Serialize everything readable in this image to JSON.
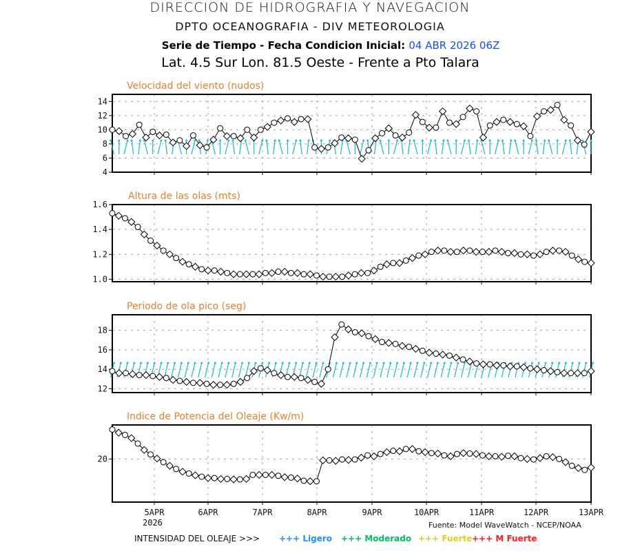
{
  "header": {
    "line1": "DIRECCION DE HIDROGRAFIA Y NAVEGACION",
    "line2": "DPTO OCEANOGRAFIA - DIV METEOROLOGIA",
    "line3_prefix": "Serie de Tiempo - Fecha Condicion Inicial:",
    "line3_date": "04 ABR 2026 06Z",
    "line4": "Lat. 4.5 Sur  Lon. 81.5 Oeste - Frente a Pto Talara"
  },
  "footer": {
    "year": "2026",
    "source": "Fuente: Model WaveWatch - NCEP/NOAA",
    "intensity_label": "INTENSIDAD DEL OLEAJE >>>",
    "legend": [
      {
        "label": "+++ Ligero",
        "color": "#1e90ff"
      },
      {
        "label": "+++ Moderado",
        "color": "#00c060"
      },
      {
        "label": "+++ Fuerte",
        "color": "#e0d020"
      },
      {
        "label": "+++ M Fuerte",
        "color": "#ff2020"
      }
    ]
  },
  "colors": {
    "title": "#e8822a",
    "arrows": "#20c0c8",
    "line": "#000000",
    "grid": "#a0a0a0"
  },
  "chart_data": [
    {
      "type": "line",
      "title": "Velocidad del viento (nudos)",
      "x_start": "04APR 06Z",
      "x_step_hours": 3,
      "xtick_labels": [
        "5APR",
        "6APR",
        "7APR",
        "8APR",
        "9APR",
        "10APR",
        "11APR",
        "12APR",
        "13APR"
      ],
      "ylim": [
        4,
        15
      ],
      "yticks": [
        4,
        6,
        8,
        10,
        12,
        14
      ],
      "grid": true,
      "values": [
        10.0,
        9.8,
        9.1,
        9.4,
        10.7,
        8.9,
        9.7,
        9.2,
        9.3,
        8.2,
        8.5,
        7.7,
        9.2,
        7.8,
        7.5,
        8.6,
        10.2,
        9.1,
        9.1,
        8.8,
        10.0,
        8.9,
        10.0,
        10.4,
        11.0,
        11.3,
        11.6,
        11.1,
        11.5,
        11.5,
        7.5,
        7.3,
        7.5,
        8.1,
        8.9,
        8.8,
        8.6,
        5.9,
        7.1,
        8.8,
        9.5,
        10.2,
        9.2,
        8.9,
        9.6,
        12.1,
        11.1,
        10.3,
        10.3,
        12.6,
        11.0,
        10.8,
        11.8,
        13.0,
        12.6,
        8.9,
        10.6,
        11.1,
        11.4,
        11.1,
        10.8,
        10.5,
        9.1,
        11.9,
        12.6,
        12.8,
        13.5,
        11.4,
        10.6,
        8.5,
        7.9,
        9.7
      ],
      "has_direction_arrows": true
    },
    {
      "type": "line",
      "title": "Altura de las olas (mts)",
      "x_start": "04APR 06Z",
      "x_step_hours": 3,
      "ylim": [
        0.98,
        1.6
      ],
      "yticks": [
        1.0,
        1.2,
        1.4,
        1.6
      ],
      "grid": true,
      "values": [
        1.53,
        1.51,
        1.49,
        1.46,
        1.42,
        1.36,
        1.31,
        1.27,
        1.23,
        1.2,
        1.17,
        1.14,
        1.12,
        1.1,
        1.08,
        1.07,
        1.07,
        1.06,
        1.05,
        1.04,
        1.04,
        1.04,
        1.04,
        1.04,
        1.05,
        1.05,
        1.06,
        1.06,
        1.05,
        1.05,
        1.04,
        1.04,
        1.03,
        1.02,
        1.02,
        1.02,
        1.02,
        1.03,
        1.04,
        1.05,
        1.05,
        1.07,
        1.1,
        1.12,
        1.13,
        1.13,
        1.15,
        1.17,
        1.19,
        1.2,
        1.22,
        1.23,
        1.23,
        1.22,
        1.22,
        1.23,
        1.23,
        1.22,
        1.22,
        1.22,
        1.23,
        1.22,
        1.21,
        1.21,
        1.2,
        1.2,
        1.19,
        1.2,
        1.22,
        1.23,
        1.23,
        1.22,
        1.19,
        1.16,
        1.14,
        1.13
      ]
    },
    {
      "type": "line",
      "title": "Periodo de ola pico (seg)",
      "title_display": "Periodo de ola pico (seg)",
      "x_start": "04APR 06Z",
      "x_step_hours": 3,
      "ylim": [
        11.6,
        19.6
      ],
      "yticks": [
        12,
        14,
        16,
        18
      ],
      "grid": true,
      "values": [
        13.8,
        13.6,
        13.6,
        13.5,
        13.4,
        13.4,
        13.3,
        13.2,
        13.1,
        12.9,
        12.8,
        12.7,
        12.6,
        12.6,
        12.5,
        12.4,
        12.4,
        12.4,
        12.5,
        12.7,
        13.1,
        13.8,
        14.1,
        13.9,
        13.6,
        13.4,
        13.2,
        13.2,
        13.1,
        12.9,
        12.7,
        12.5,
        14.0,
        17.3,
        18.6,
        18.1,
        17.8,
        17.7,
        17.4,
        17.1,
        16.8,
        16.7,
        16.6,
        16.4,
        16.3,
        16.1,
        15.9,
        15.7,
        15.6,
        15.5,
        15.4,
        15.2,
        15.0,
        14.8,
        14.6,
        14.5,
        14.5,
        14.4,
        14.4,
        14.3,
        14.3,
        14.2,
        14.1,
        14.0,
        13.9,
        13.8,
        13.7,
        13.6,
        13.6,
        13.6,
        13.6,
        13.8
      ],
      "has_direction_arrows": true
    },
    {
      "type": "line",
      "title": "Indice de Potencia del Oleaje (Kw/m)",
      "x_start": "04APR 06Z",
      "x_step_hours": 3,
      "ylim": [
        10.5,
        27.5
      ],
      "yticks": [
        20
      ],
      "grid": true,
      "values": [
        26.5,
        25.8,
        25.3,
        24.6,
        23.4,
        22.0,
        21.0,
        20.1,
        19.3,
        18.5,
        17.8,
        17.2,
        16.8,
        16.4,
        16.1,
        15.8,
        15.8,
        15.6,
        15.6,
        15.5,
        15.5,
        15.6,
        16.5,
        16.5,
        16.5,
        16.5,
        16.3,
        16.0,
        15.9,
        15.7,
        15.2,
        15.1,
        15.1,
        19.7,
        19.7,
        19.6,
        19.9,
        19.8,
        19.9,
        20.3,
        20.8,
        20.6,
        21.1,
        21.5,
        21.8,
        21.7,
        22.2,
        22.2,
        21.7,
        21.5,
        21.3,
        21.2,
        20.8,
        20.6,
        21.1,
        21.3,
        21.2,
        21.1,
        20.8,
        20.6,
        20.6,
        20.5,
        20.7,
        20.6,
        20.2,
        20.0,
        19.9,
        20.2,
        20.6,
        20.4,
        20.0,
        19.3,
        18.5,
        18.0,
        17.6,
        18.1
      ]
    }
  ]
}
